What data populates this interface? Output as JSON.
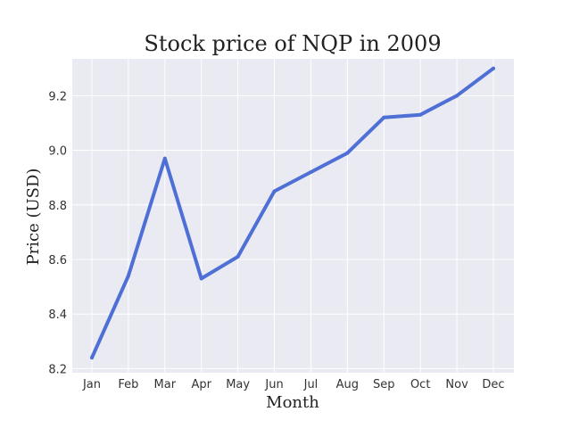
{
  "chart_data": {
    "type": "line",
    "title": "Stock price of NQP in 2009",
    "xlabel": "Month",
    "ylabel": "Price (USD)",
    "categories": [
      "Jan",
      "Feb",
      "Mar",
      "Apr",
      "May",
      "Jun",
      "Jul",
      "Aug",
      "Sep",
      "Oct",
      "Nov",
      "Dec"
    ],
    "series": [
      {
        "values": [
          8.24,
          8.54,
          8.97,
          8.53,
          8.61,
          8.85,
          8.92,
          8.99,
          9.12,
          9.13,
          9.2,
          9.3
        ],
        "color": "#4e6fd6"
      }
    ],
    "ylim": [
      8.185,
      9.335
    ],
    "yticks": [
      "8.2",
      "8.4",
      "8.6",
      "8.8",
      "9.0",
      "9.2"
    ],
    "grid": true,
    "legend": "none"
  }
}
